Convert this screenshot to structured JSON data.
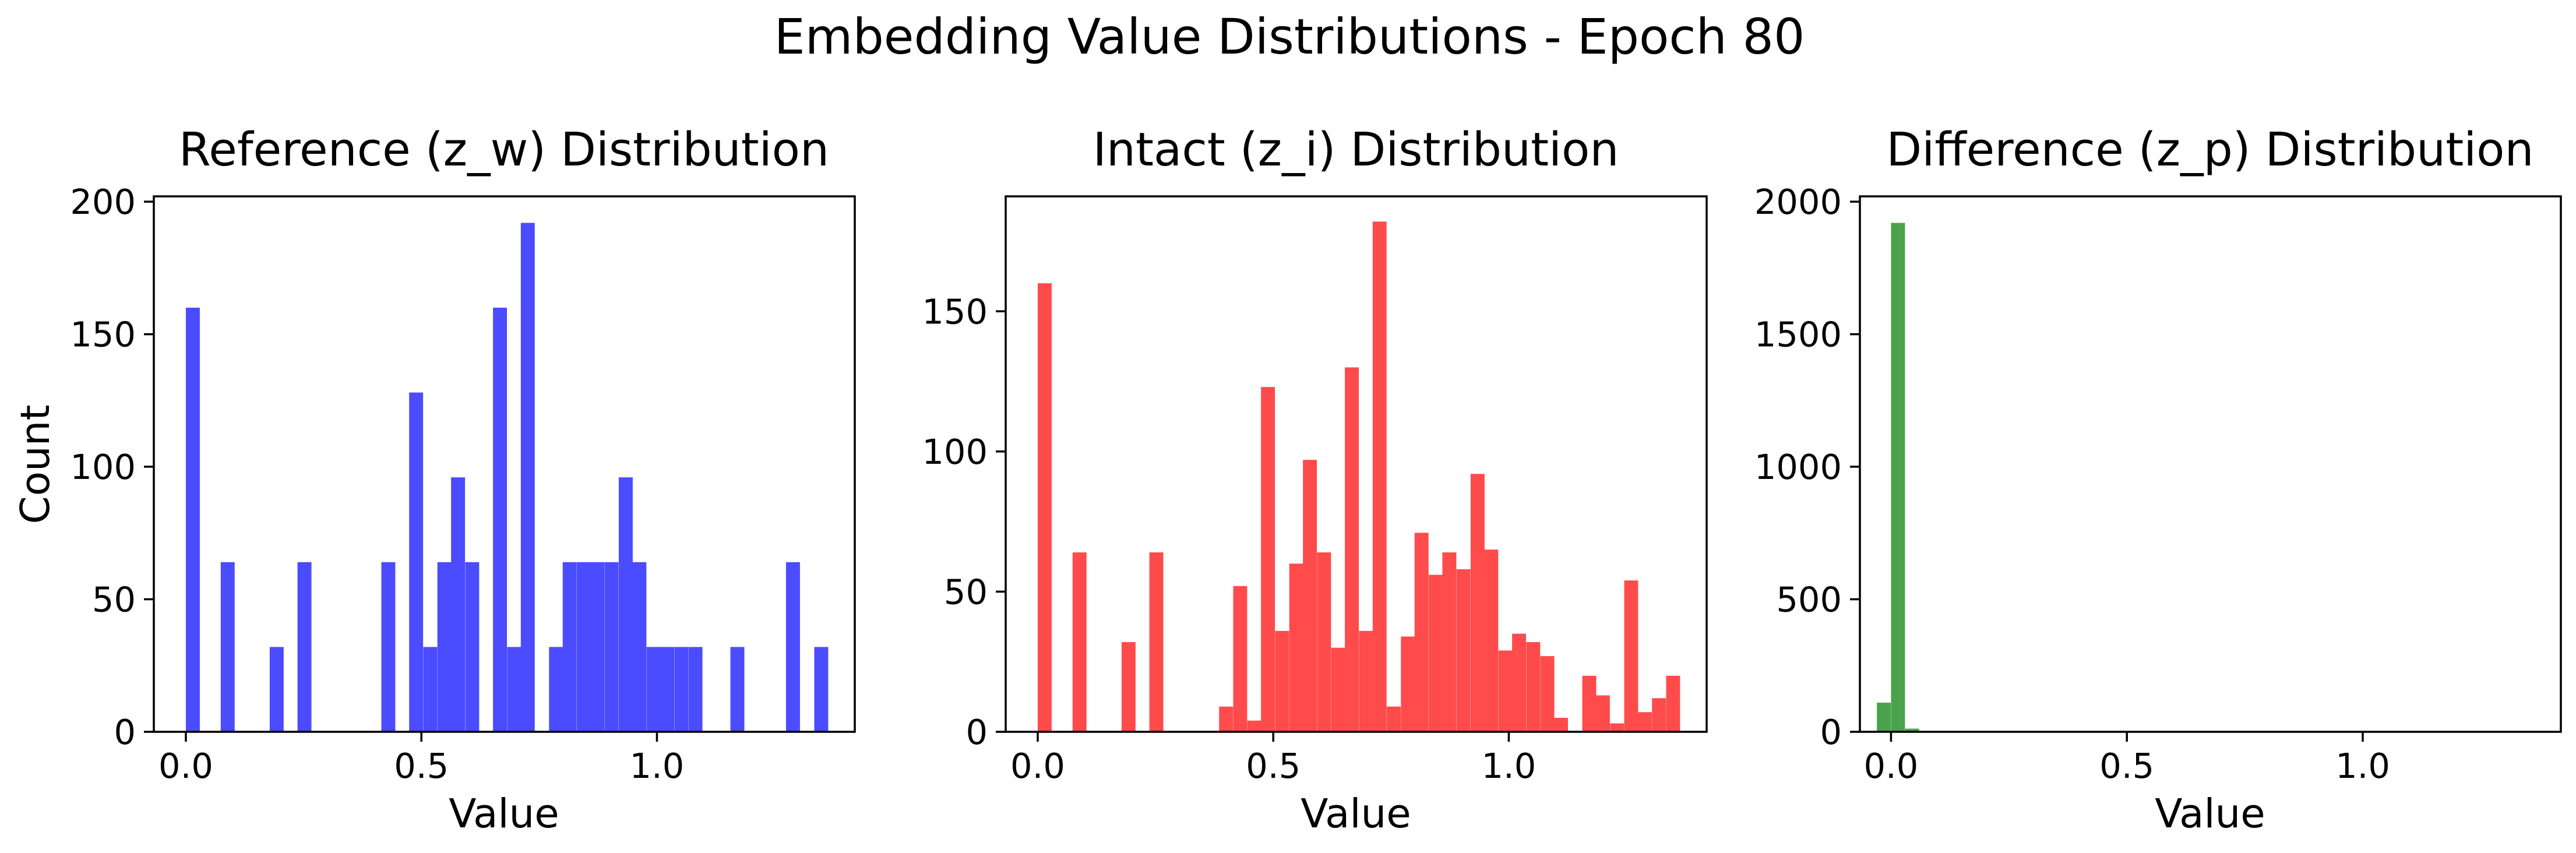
{
  "figure": {
    "title": "Embedding Value Distributions - Epoch 80"
  },
  "chart_data": [
    {
      "type": "bar",
      "title": "Reference (z_w) Distribution",
      "xlabel": "Value",
      "ylabel": "Count",
      "xlim": [
        -0.068,
        1.42
      ],
      "ylim": [
        0,
        202
      ],
      "xticks": [
        0.0,
        0.5,
        1.0
      ],
      "xtick_labels": [
        "0.0",
        "0.5",
        "1.0"
      ],
      "yticks": [
        0,
        50,
        100,
        150,
        200
      ],
      "ytick_labels": [
        "0",
        "50",
        "100",
        "150",
        "200"
      ],
      "color": "#4b4bff",
      "bin_width": 0.0296,
      "bins": [
        {
          "x": 0.0,
          "count": 160
        },
        {
          "x": 0.074,
          "count": 64
        },
        {
          "x": 0.178,
          "count": 32
        },
        {
          "x": 0.237,
          "count": 64
        },
        {
          "x": 0.415,
          "count": 64
        },
        {
          "x": 0.474,
          "count": 128
        },
        {
          "x": 0.504,
          "count": 32
        },
        {
          "x": 0.534,
          "count": 64
        },
        {
          "x": 0.563,
          "count": 96
        },
        {
          "x": 0.593,
          "count": 64
        },
        {
          "x": 0.652,
          "count": 160
        },
        {
          "x": 0.682,
          "count": 32
        },
        {
          "x": 0.711,
          "count": 192
        },
        {
          "x": 0.771,
          "count": 32
        },
        {
          "x": 0.8,
          "count": 64
        },
        {
          "x": 0.83,
          "count": 64
        },
        {
          "x": 0.859,
          "count": 64
        },
        {
          "x": 0.889,
          "count": 64
        },
        {
          "x": 0.919,
          "count": 96
        },
        {
          "x": 0.948,
          "count": 64
        },
        {
          "x": 0.978,
          "count": 32
        },
        {
          "x": 1.007,
          "count": 32
        },
        {
          "x": 1.037,
          "count": 32
        },
        {
          "x": 1.067,
          "count": 32
        },
        {
          "x": 1.156,
          "count": 32
        },
        {
          "x": 1.274,
          "count": 64
        },
        {
          "x": 1.334,
          "count": 32
        }
      ]
    },
    {
      "type": "bar",
      "title": "Intact (z_i) Distribution",
      "xlabel": "Value",
      "ylabel": "",
      "xlim": [
        -0.068,
        1.42
      ],
      "ylim": [
        0,
        191
      ],
      "xticks": [
        0.0,
        0.5,
        1.0
      ],
      "xtick_labels": [
        "0.0",
        "0.5",
        "1.0"
      ],
      "yticks": [
        0,
        50,
        100,
        150
      ],
      "ytick_labels": [
        "0",
        "50",
        "100",
        "150"
      ],
      "color": "#ff4b4b",
      "bin_width": 0.0296,
      "bins": [
        {
          "x": 0.0,
          "count": 160
        },
        {
          "x": 0.074,
          "count": 64
        },
        {
          "x": 0.178,
          "count": 32
        },
        {
          "x": 0.237,
          "count": 64
        },
        {
          "x": 0.385,
          "count": 9
        },
        {
          "x": 0.415,
          "count": 52
        },
        {
          "x": 0.445,
          "count": 4
        },
        {
          "x": 0.474,
          "count": 123
        },
        {
          "x": 0.504,
          "count": 36
        },
        {
          "x": 0.534,
          "count": 60
        },
        {
          "x": 0.563,
          "count": 97
        },
        {
          "x": 0.593,
          "count": 64
        },
        {
          "x": 0.623,
          "count": 30
        },
        {
          "x": 0.652,
          "count": 130
        },
        {
          "x": 0.682,
          "count": 36
        },
        {
          "x": 0.711,
          "count": 182
        },
        {
          "x": 0.741,
          "count": 9
        },
        {
          "x": 0.771,
          "count": 34
        },
        {
          "x": 0.8,
          "count": 71
        },
        {
          "x": 0.83,
          "count": 56
        },
        {
          "x": 0.859,
          "count": 64
        },
        {
          "x": 0.889,
          "count": 58
        },
        {
          "x": 0.919,
          "count": 92
        },
        {
          "x": 0.948,
          "count": 65
        },
        {
          "x": 0.978,
          "count": 29
        },
        {
          "x": 1.007,
          "count": 35
        },
        {
          "x": 1.037,
          "count": 32
        },
        {
          "x": 1.067,
          "count": 27
        },
        {
          "x": 1.096,
          "count": 5
        },
        {
          "x": 1.156,
          "count": 20
        },
        {
          "x": 1.185,
          "count": 13
        },
        {
          "x": 1.215,
          "count": 3
        },
        {
          "x": 1.245,
          "count": 54
        },
        {
          "x": 1.274,
          "count": 7
        },
        {
          "x": 1.304,
          "count": 12
        },
        {
          "x": 1.334,
          "count": 20
        }
      ]
    },
    {
      "type": "bar",
      "title": "Difference (z_p) Distribution",
      "xlabel": "Value",
      "ylabel": "",
      "xlim": [
        -0.066,
        1.42
      ],
      "ylim": [
        0,
        2020
      ],
      "xticks": [
        0.0,
        0.5,
        1.0
      ],
      "xtick_labels": [
        "0.0",
        "0.5",
        "1.0"
      ],
      "yticks": [
        0,
        500,
        1000,
        1500,
        2000
      ],
      "ytick_labels": [
        "0",
        "500",
        "1000",
        "1500",
        "2000"
      ],
      "color": "#4ca24c",
      "bin_width": 0.0296,
      "bins": [
        {
          "x": -0.03,
          "count": 110
        },
        {
          "x": 0.0,
          "count": 1920
        },
        {
          "x": 0.03,
          "count": 12
        }
      ]
    }
  ]
}
